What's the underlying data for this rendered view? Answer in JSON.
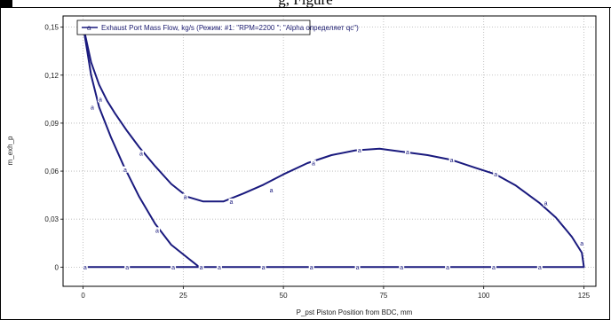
{
  "page": {
    "header_fragment": "g, Figure"
  },
  "chart_data": {
    "type": "line",
    "title": "",
    "xlabel": "P_pst    Piston Position from BDC, mm",
    "ylabel": "m_exh_p",
    "xlim": [
      -5,
      128
    ],
    "ylim": [
      -0.012,
      0.157
    ],
    "x_ticks": [
      0,
      25,
      50,
      75,
      100,
      125
    ],
    "y_ticks": [
      0,
      0.03,
      0.06,
      0.09,
      0.12,
      0.15
    ],
    "x_tick_labels": [
      "0",
      "25",
      "50",
      "75",
      "100",
      "125"
    ],
    "y_tick_labels": [
      "0",
      "0,03",
      "0,06",
      "0,09",
      "0,12",
      "0,15"
    ],
    "grid": true,
    "legend_position": "top-left",
    "colors": {
      "line": "#1a1a7e",
      "grid": "#b4b4b4",
      "frame": "#000000"
    },
    "series": [
      {
        "name": "Exhaust Port Mass Flow, kg/s (Режим: #1: \"RPM=2200          \"; \"Alpha определяет qc\")",
        "marker_symbol": "a",
        "x": [
          0,
          2,
          4,
          6,
          8,
          11,
          14,
          18,
          22,
          26,
          30,
          35,
          40,
          45,
          50,
          56,
          62,
          68,
          74,
          80,
          86,
          92,
          98,
          103,
          108,
          114,
          118,
          122,
          124.5,
          125,
          124.5,
          122,
          110,
          90,
          70,
          50,
          30,
          10,
          2,
          0
        ],
        "y": [
          0.151,
          0.128,
          0.114,
          0.104,
          0.096,
          0.085,
          0.075,
          0.063,
          0.052,
          0.044,
          0.041,
          0.041,
          0.046,
          0.0515,
          0.058,
          0.065,
          0.07,
          0.073,
          0.074,
          0.072,
          0.07,
          0.067,
          0.062,
          0.058,
          0.051,
          0.04,
          0.031,
          0.019,
          0.009,
          0.0,
          0.0,
          0.0,
          0.0,
          0.0,
          0.0,
          0.0,
          0.0,
          0.0,
          0.0,
          0.0
        ]
      },
      {
        "name": "",
        "marker_symbol": "a",
        "x": [
          0,
          2,
          4,
          7,
          10,
          14,
          18,
          22,
          26,
          29
        ],
        "y": [
          0.151,
          0.12,
          0.1,
          0.081,
          0.064,
          0.044,
          0.027,
          0.014,
          0.006,
          0.0
        ]
      }
    ],
    "marker_points": [
      {
        "x": 0.3,
        "y": 0.15
      },
      {
        "x": 4.3,
        "y": 0.105
      },
      {
        "x": 14.5,
        "y": 0.071
      },
      {
        "x": 25.5,
        "y": 0.044
      },
      {
        "x": 37,
        "y": 0.041
      },
      {
        "x": 47,
        "y": 0.048
      },
      {
        "x": 57.5,
        "y": 0.065
      },
      {
        "x": 69,
        "y": 0.073
      },
      {
        "x": 81,
        "y": 0.072
      },
      {
        "x": 92,
        "y": 0.067
      },
      {
        "x": 103,
        "y": 0.058
      },
      {
        "x": 115.5,
        "y": 0.04
      },
      {
        "x": 124.5,
        "y": 0.015
      },
      {
        "x": 2.3,
        "y": 0.1
      },
      {
        "x": 10.5,
        "y": 0.061
      },
      {
        "x": 18.5,
        "y": 0.023
      },
      {
        "x": 29.5,
        "y": 0.0
      },
      {
        "x": 0.5,
        "y": 0.0
      },
      {
        "x": 11,
        "y": 0.0
      },
      {
        "x": 22.5,
        "y": 0.0
      },
      {
        "x": 34,
        "y": 0.0
      },
      {
        "x": 45,
        "y": 0.0
      },
      {
        "x": 57,
        "y": 0.0
      },
      {
        "x": 68.5,
        "y": 0.0
      },
      {
        "x": 79.5,
        "y": 0.0
      },
      {
        "x": 91,
        "y": 0.0
      },
      {
        "x": 102.5,
        "y": 0.0
      },
      {
        "x": 114,
        "y": 0.0
      }
    ]
  }
}
